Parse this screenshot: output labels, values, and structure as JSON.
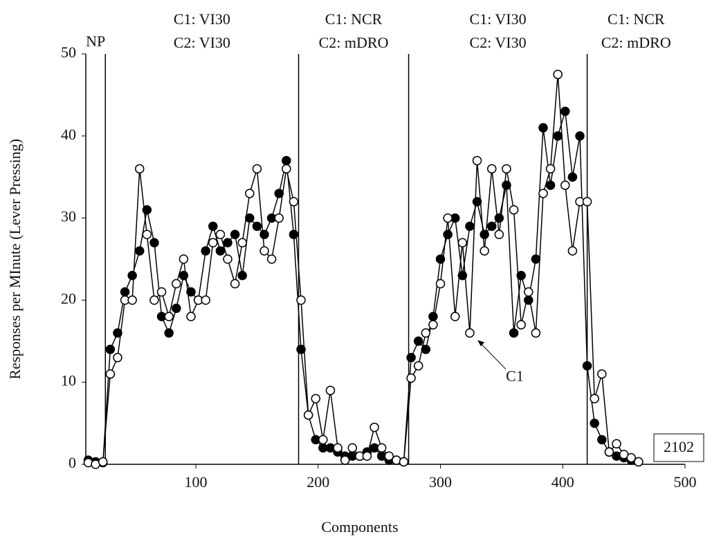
{
  "chart_data": {
    "type": "line",
    "xlabel": "Components",
    "ylabel": "Responses per MInute (Lever Pressing)",
    "xlim": [
      10,
      500
    ],
    "xticks": [
      100,
      200,
      300,
      400,
      500
    ],
    "ylim": [
      0,
      50
    ],
    "yticks": [
      0,
      10,
      20,
      30,
      40,
      50
    ],
    "x": [
      12,
      18,
      24,
      30,
      36,
      42,
      48,
      54,
      60,
      66,
      72,
      78,
      84,
      90,
      96,
      102,
      108,
      114,
      120,
      126,
      132,
      138,
      144,
      150,
      156,
      162,
      168,
      174,
      180,
      186,
      192,
      198,
      204,
      210,
      216,
      222,
      228,
      234,
      240,
      246,
      252,
      258,
      264,
      270,
      276,
      282,
      288,
      294,
      300,
      306,
      312,
      318,
      324,
      330,
      336,
      342,
      348,
      354,
      360,
      366,
      372,
      378,
      384,
      390,
      396,
      402,
      408,
      414,
      420,
      426,
      432,
      438,
      444,
      450,
      456,
      462
    ],
    "series": [
      {
        "color": "#000000",
        "marker": "filled",
        "values": [
          0.5,
          0.3,
          0.2,
          14,
          16,
          21,
          23,
          26,
          31,
          27,
          18,
          16,
          19,
          23,
          21,
          20,
          26,
          29,
          26,
          27,
          28,
          23,
          30,
          29,
          28,
          30,
          33,
          37,
          28,
          14,
          6,
          3,
          2,
          2,
          1.5,
          1,
          1,
          1,
          1.5,
          2,
          1,
          0.5,
          0.5,
          0.3,
          13,
          15,
          14,
          18,
          25,
          28,
          30,
          23,
          29,
          32,
          28,
          29,
          30,
          34,
          16,
          23,
          20,
          25,
          41,
          34,
          40,
          43,
          35,
          40,
          12,
          5,
          3,
          1.5,
          1,
          0.8,
          0.5,
          0.3
        ]
      },
      {
        "color": "#ffffff",
        "marker": "open",
        "values": [
          0.2,
          0,
          0.3,
          11,
          13,
          20,
          20,
          36,
          28,
          20,
          21,
          18,
          22,
          25,
          18,
          20,
          20,
          27,
          28,
          25,
          22,
          27,
          33,
          36,
          26,
          25,
          30,
          36,
          32,
          20,
          6,
          8,
          3,
          9,
          2,
          0.5,
          2,
          1,
          1,
          4.5,
          2,
          1,
          0.5,
          0.3,
          10.5,
          12,
          16,
          17,
          22,
          30,
          18,
          27,
          16,
          37,
          26,
          36,
          28,
          36,
          31,
          17,
          21,
          16,
          33,
          36,
          47.5,
          34,
          26,
          32,
          32,
          8,
          11,
          1.5,
          2.5,
          1.2,
          0.8,
          0.3
        ]
      }
    ],
    "phase_lines": [
      26,
      184,
      274,
      420
    ],
    "phase_labels": [
      [
        "NP"
      ],
      [
        "C1: VI30",
        "C2: VI30"
      ],
      [
        "C1: NCR",
        "C2: mDRO"
      ],
      [
        "C1: VI30",
        "C2: VI30"
      ],
      [
        "C1: NCR",
        "C2: mDRO"
      ]
    ],
    "annotation": {
      "text": "C1",
      "x": 328,
      "y": 15.8
    },
    "subject": "2102"
  }
}
